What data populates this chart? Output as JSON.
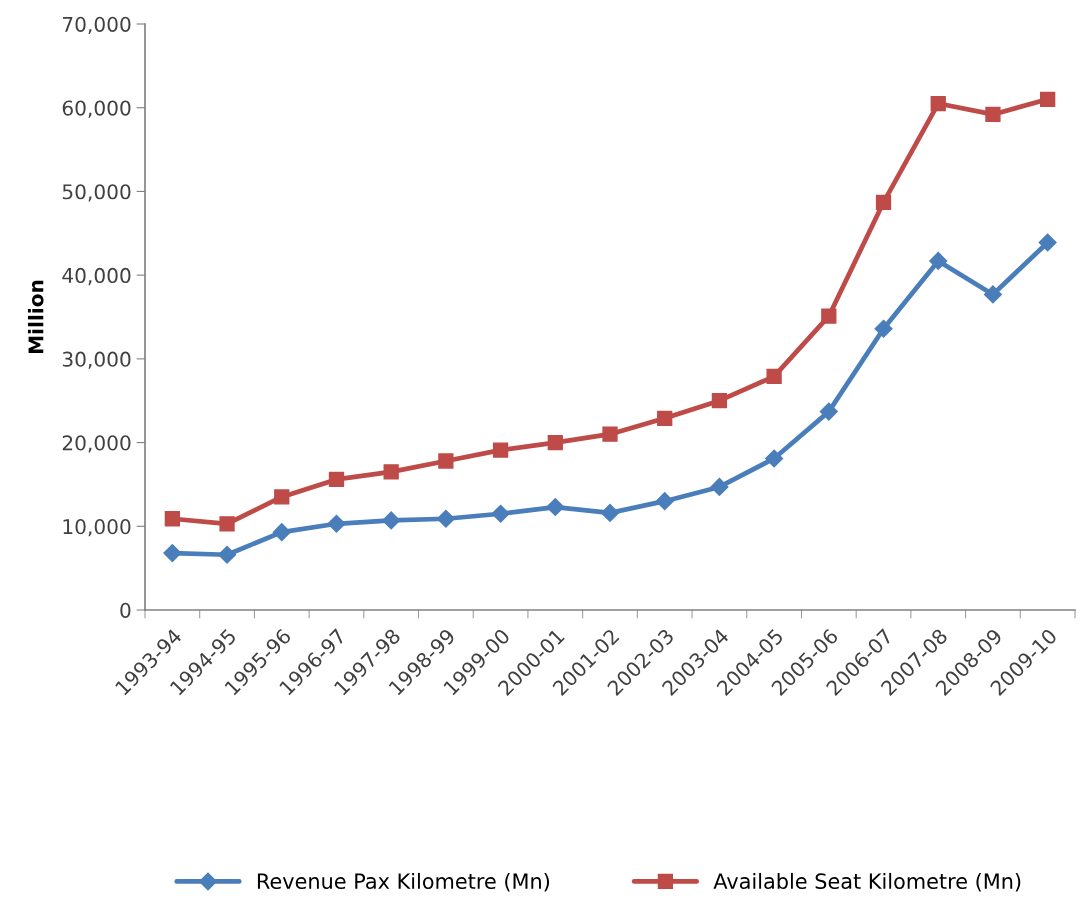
{
  "chart_data": {
    "type": "line",
    "ylabel": "Million",
    "categories": [
      "1993-94",
      "1994-95",
      "1995-96",
      "1996-97",
      "1997-98",
      "1998-99",
      "1999-00",
      "2000-01",
      "2001-02",
      "2002-03",
      "2003-04",
      "2004-05",
      "2005-06",
      "2006-07",
      "2007-08",
      "2008-09",
      "2009-10"
    ],
    "series": [
      {
        "name": "Revenue Pax Kilometre (Mn)",
        "color": "#4a7ebb",
        "marker": "diamond",
        "values": [
          6800,
          6600,
          9300,
          10300,
          10700,
          10900,
          11500,
          12300,
          11600,
          13000,
          14700,
          18100,
          23700,
          33600,
          41700,
          37700,
          43900
        ]
      },
      {
        "name": "Available Seat Kilometre (Mn)",
        "color": "#be4b48",
        "marker": "square",
        "values": [
          10900,
          10300,
          13500,
          15600,
          16500,
          17800,
          19100,
          20000,
          21000,
          22900,
          25000,
          27900,
          35100,
          48700,
          60500,
          59200,
          61000
        ]
      }
    ],
    "ylim": [
      0,
      70000
    ],
    "yticks": [
      0,
      {
        "value": 10000,
        "label": "10,000"
      },
      {
        "value": 20000,
        "label": "20,000"
      },
      {
        "value": 30000,
        "label": "30,000"
      },
      {
        "value": 40000,
        "label": "40,000"
      },
      {
        "value": 50000,
        "label": "50,000"
      },
      {
        "value": 60000,
        "label": "60,000"
      },
      {
        "value": 70000,
        "label": "70,000"
      }
    ],
    "grid": false,
    "legend": "bottom",
    "line_style": "solid"
  }
}
